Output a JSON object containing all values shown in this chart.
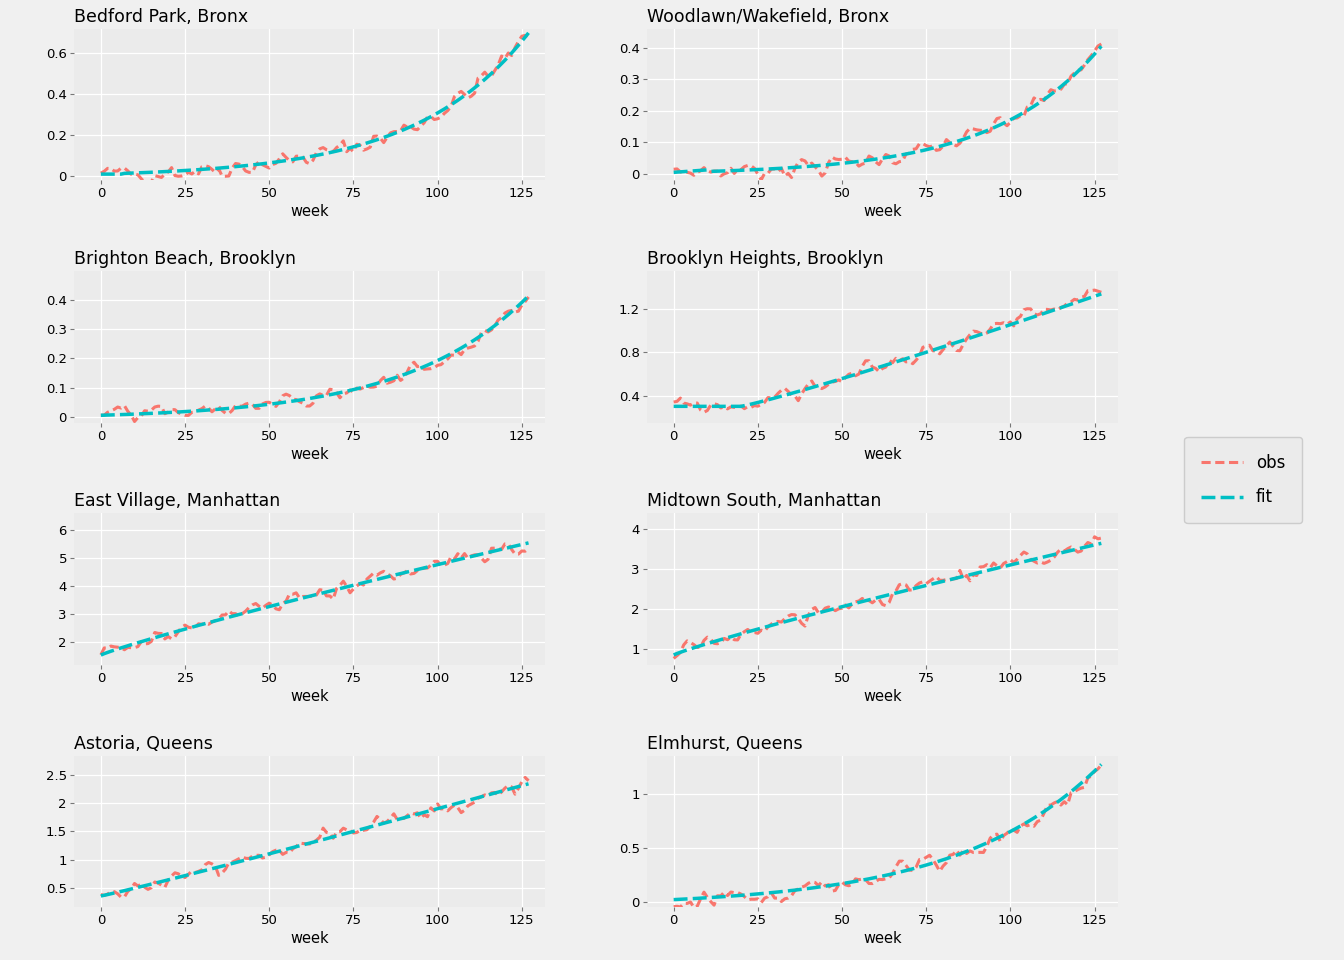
{
  "panels": [
    {
      "title": "Bedford Park, Bronx",
      "ylim": [
        -0.02,
        0.72
      ],
      "yticks": [
        0.0,
        0.2,
        0.4,
        0.6
      ]
    },
    {
      "title": "Woodlawn/Wakefield, Bronx",
      "ylim": [
        -0.02,
        0.46
      ],
      "yticks": [
        0.0,
        0.1,
        0.2,
        0.3,
        0.4
      ]
    },
    {
      "title": "Brighton Beach, Brooklyn",
      "ylim": [
        -0.02,
        0.5
      ],
      "yticks": [
        0.0,
        0.1,
        0.2,
        0.3,
        0.4
      ]
    },
    {
      "title": "Brooklyn Heights, Brooklyn",
      "ylim": [
        0.15,
        1.55
      ],
      "yticks": [
        0.4,
        0.8,
        1.2
      ]
    },
    {
      "title": "East Village, Manhattan",
      "ylim": [
        1.2,
        6.6
      ],
      "yticks": [
        2,
        3,
        4,
        5,
        6
      ]
    },
    {
      "title": "Midtown South, Manhattan",
      "ylim": [
        0.6,
        4.4
      ],
      "yticks": [
        1,
        2,
        3,
        4
      ]
    },
    {
      "title": "Astoria, Queens",
      "ylim": [
        0.15,
        2.85
      ],
      "yticks": [
        0.5,
        1.0,
        1.5,
        2.0,
        2.5
      ]
    },
    {
      "title": "Elmhurst, Queens",
      "ylim": [
        -0.05,
        1.35
      ],
      "yticks": [
        0.0,
        0.5,
        1.0
      ]
    }
  ],
  "n_weeks": 128,
  "obs_color": "#F8766D",
  "fit_color": "#00BFC4",
  "bg_color": "#EBEBEB",
  "grid_color": "#FFFFFF",
  "xticks": [
    0,
    25,
    50,
    75,
    100,
    125
  ],
  "xlim": [
    -8,
    132
  ],
  "xlabel": "week",
  "legend_labels": [
    "obs",
    "fit"
  ]
}
